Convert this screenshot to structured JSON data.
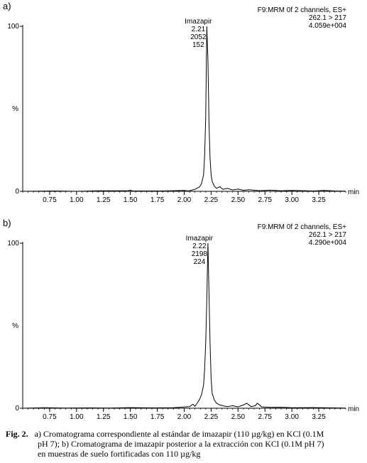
{
  "chart_data": [
    {
      "type": "line",
      "panel_label": "a)",
      "header": [
        "F9:MRM  0f 2 channels, ES+",
        "262.1 > 217",
        "4.059e+004"
      ],
      "xlabel": "min",
      "ylabel": "%",
      "y_ticks": [
        "0",
        "100"
      ],
      "x_ticks": [
        "0.75",
        "1.00",
        "1.25",
        "1.50",
        "1.75",
        "2.00",
        "2.25",
        "2.50",
        "2.75",
        "3.00",
        "3.25"
      ],
      "xlim": [
        0.5,
        3.5
      ],
      "ylim": [
        0,
        100
      ],
      "peak_label": [
        "Imazapir",
        "2.21",
        "2052",
        "152"
      ],
      "peak_rt": 2.21,
      "series": [
        {
          "x": [
            0.5,
            0.8,
            1.0,
            1.2,
            1.48,
            1.5,
            1.52,
            1.8,
            2.0,
            2.04,
            2.07,
            2.1,
            2.12,
            2.14,
            2.16,
            2.18,
            2.19,
            2.2,
            2.21,
            2.22,
            2.23,
            2.24,
            2.25,
            2.26,
            2.28,
            2.3,
            2.33,
            2.36,
            2.4,
            2.45,
            2.5,
            2.55,
            2.6,
            2.7,
            2.8,
            2.9,
            3.0,
            3.2,
            3.3,
            3.4,
            3.5
          ],
          "y": [
            0,
            0.2,
            0,
            0.3,
            0.4,
            0.7,
            0.2,
            0.2,
            0.5,
            0.2,
            0.7,
            1.2,
            2.0,
            2.5,
            4.5,
            10,
            22,
            45,
            100,
            80,
            42,
            20,
            10,
            6,
            3,
            1.8,
            2.8,
            1.2,
            1.8,
            0.8,
            1.4,
            0.6,
            1.0,
            0.4,
            0.7,
            0.3,
            0.5,
            0.2,
            0.5,
            0.2,
            0.1
          ]
        }
      ]
    },
    {
      "type": "line",
      "panel_label": "b)",
      "header": [
        "F9:MRM  0f 2 channels, ES+",
        "262.1 > 217",
        "4.290e+004"
      ],
      "xlabel": "min",
      "ylabel": "%",
      "y_ticks": [
        "0",
        "100"
      ],
      "x_ticks": [
        "0.75",
        "1.00",
        "1.25",
        "1.50",
        "1.75",
        "2.00",
        "2.25",
        "2.50",
        "2.75",
        "3.00",
        "3.25"
      ],
      "xlim": [
        0.5,
        3.5
      ],
      "ylim": [
        0,
        100
      ],
      "peak_label": [
        "Imazapir",
        "2.22",
        "2198",
        "224"
      ],
      "peak_rt": 2.22,
      "series": [
        {
          "x": [
            0.5,
            0.7,
            0.9,
            1.1,
            1.3,
            1.5,
            1.7,
            1.9,
            2.05,
            2.08,
            2.1,
            2.12,
            2.14,
            2.16,
            2.18,
            2.19,
            2.2,
            2.21,
            2.22,
            2.23,
            2.24,
            2.25,
            2.26,
            2.28,
            2.3,
            2.33,
            2.36,
            2.4,
            2.45,
            2.5,
            2.55,
            2.58,
            2.62,
            2.66,
            2.68,
            2.72,
            2.8,
            2.9,
            3.0,
            3.2,
            3.4,
            3.5
          ],
          "y": [
            0,
            0.3,
            0.1,
            0.2,
            0.1,
            0.4,
            0.2,
            0.3,
            1.0,
            2.4,
            1.2,
            3.0,
            5,
            8,
            14,
            24,
            40,
            65,
            100,
            70,
            40,
            18,
            9,
            5,
            3,
            2,
            1.5,
            1.0,
            1.5,
            0.8,
            2.0,
            3.0,
            1.0,
            1.5,
            3.0,
            0.8,
            0.5,
            0.6,
            0.3,
            0.4,
            0.2,
            0.1
          ]
        }
      ]
    }
  ],
  "caption": {
    "figure_label": "Fig. 2.",
    "lines": [
      "a) Cromatograma correspondiente al estándar de imazapir (110 µg/kg) en KCl (0.1M",
      "pH 7); b) Cromatograma de imazapir posterior a la extracción con KCl (0.1M pH 7)",
      "en muestras de suelo fortificadas con 110 µg/kg"
    ]
  }
}
